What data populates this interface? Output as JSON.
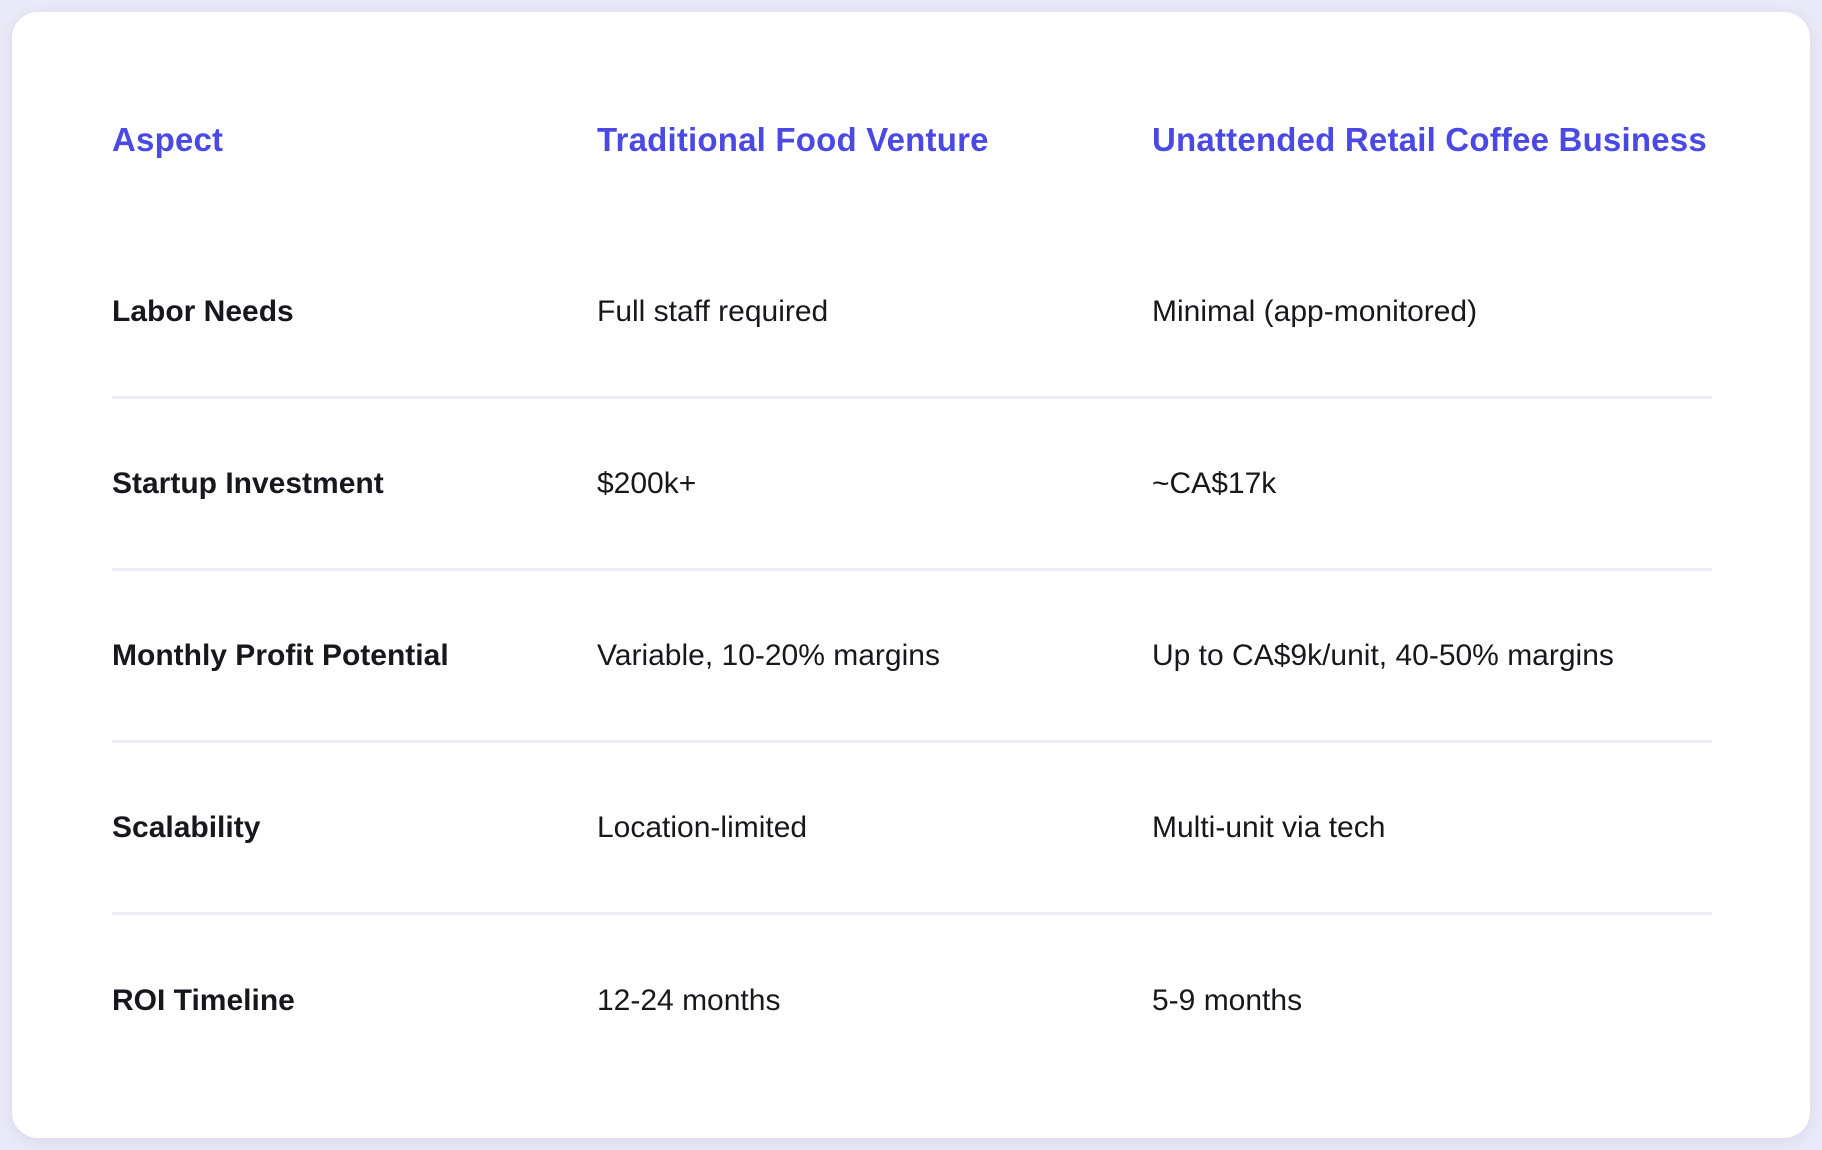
{
  "page": {
    "background_color": "#e9e9f7",
    "card_color": "#ffffff"
  },
  "colors": {
    "header_text": "#4b49e4",
    "body_text": "#17171d",
    "separator": "#ebedf9"
  },
  "table": {
    "headers": [
      "Aspect",
      "Traditional Food Venture",
      "Unattended Retail Coffee Business"
    ],
    "rows": [
      {
        "aspect": "Labor Needs",
        "traditional": "Full staff required",
        "unattended": "Minimal (app-monitored)"
      },
      {
        "aspect": "Startup Investment",
        "traditional": "$200k+",
        "unattended": "~CA$17k"
      },
      {
        "aspect": "Monthly Profit Potential",
        "traditional": "Variable, 10-20% margins",
        "unattended": "Up to CA$9k/unit, 40-50% margins"
      },
      {
        "aspect": "Scalability",
        "traditional": "Location-limited",
        "unattended": "Multi-unit via tech"
      },
      {
        "aspect": "ROI Timeline",
        "traditional": "12-24 months",
        "unattended": "5-9 months"
      }
    ]
  },
  "chart_data": {
    "type": "table",
    "title": "",
    "columns": [
      "Aspect",
      "Traditional Food Venture",
      "Unattended Retail Coffee Business"
    ],
    "rows": [
      [
        "Labor Needs",
        "Full staff required",
        "Minimal (app-monitored)"
      ],
      [
        "Startup Investment",
        "$200k+",
        "~CA$17k"
      ],
      [
        "Monthly Profit Potential",
        "Variable, 10-20% margins",
        "Up to CA$9k/unit, 40-50% margins"
      ],
      [
        "Scalability",
        "Location-limited",
        "Multi-unit via tech"
      ],
      [
        "ROI Timeline",
        "12-24 months",
        "5-9 months"
      ]
    ],
    "layout_hints": {
      "header_color": "#4b49e4",
      "row_separators": true,
      "separator_color": "#ebedf9"
    }
  }
}
